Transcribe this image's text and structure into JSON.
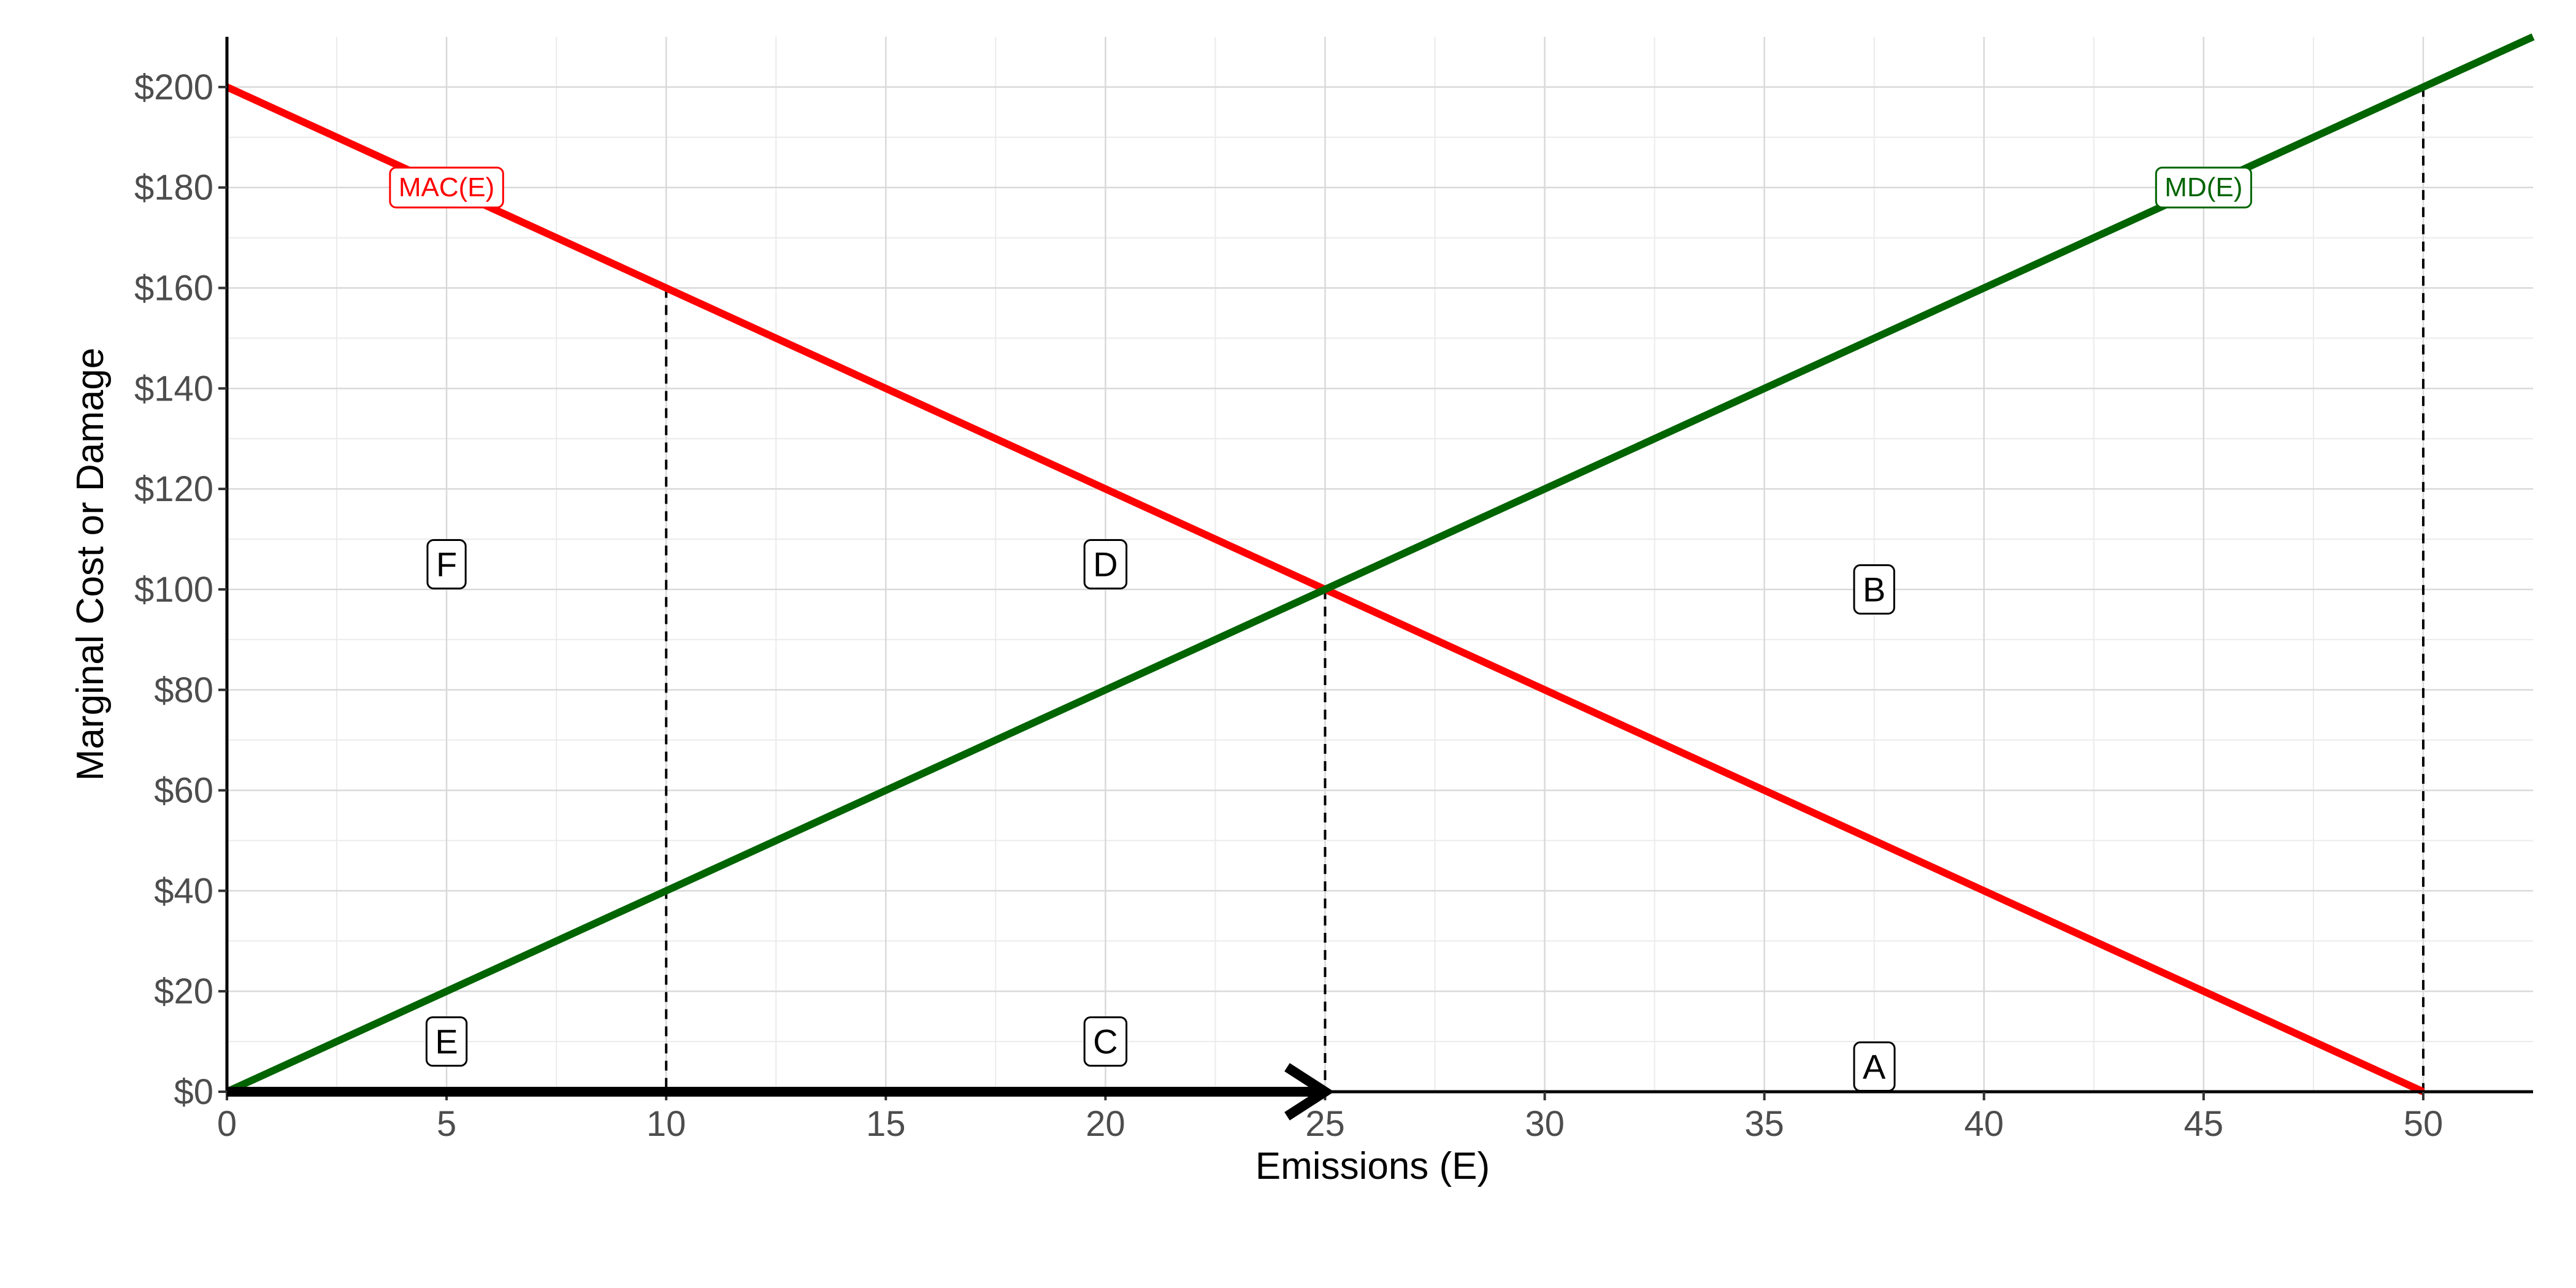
{
  "chart_data": {
    "type": "line",
    "xlabel": "Emissions (E)",
    "ylabel": "Marginal Cost or Damage",
    "xlim": [
      0,
      52.5
    ],
    "ylim": [
      0,
      210
    ],
    "grid": true,
    "x_ticks": [
      0,
      5,
      10,
      15,
      20,
      25,
      30,
      35,
      40,
      45,
      50
    ],
    "x_tick_labels": [
      "0",
      "5",
      "10",
      "15",
      "20",
      "25",
      "30",
      "35",
      "40",
      "45",
      "50"
    ],
    "y_ticks": [
      0,
      20,
      40,
      60,
      80,
      100,
      120,
      140,
      160,
      180,
      200
    ],
    "y_tick_labels": [
      "$0",
      "$20",
      "$40",
      "$60",
      "$80",
      "$100",
      "$120",
      "$140",
      "$160",
      "$180",
      "$200"
    ],
    "series": [
      {
        "name": "MAC(E)",
        "color": "#ff0000",
        "x": [
          0,
          50
        ],
        "y": [
          200,
          0
        ],
        "label": {
          "text": "MAC(E)",
          "x": 5,
          "y": 180
        }
      },
      {
        "name": "MD(E)",
        "color": "#006400",
        "x": [
          0,
          52.5
        ],
        "y": [
          0,
          210
        ],
        "label": {
          "text": "MD(E)",
          "x": 45,
          "y": 180
        }
      }
    ],
    "vlines": [
      {
        "x": 10,
        "y_top": 160
      },
      {
        "x": 25,
        "y_top": 100
      },
      {
        "x": 50,
        "y_top": 200
      }
    ],
    "arrow": {
      "x_start": 0,
      "x_end": 25,
      "y": 0,
      "color": "#000000"
    },
    "region_labels": [
      {
        "text": "A",
        "x": 37.5,
        "y": 5
      },
      {
        "text": "B",
        "x": 37.5,
        "y": 100
      },
      {
        "text": "C",
        "x": 20,
        "y": 10
      },
      {
        "text": "D",
        "x": 20,
        "y": 105
      },
      {
        "text": "E",
        "x": 5,
        "y": 10
      },
      {
        "text": "F",
        "x": 5,
        "y": 105
      }
    ]
  }
}
